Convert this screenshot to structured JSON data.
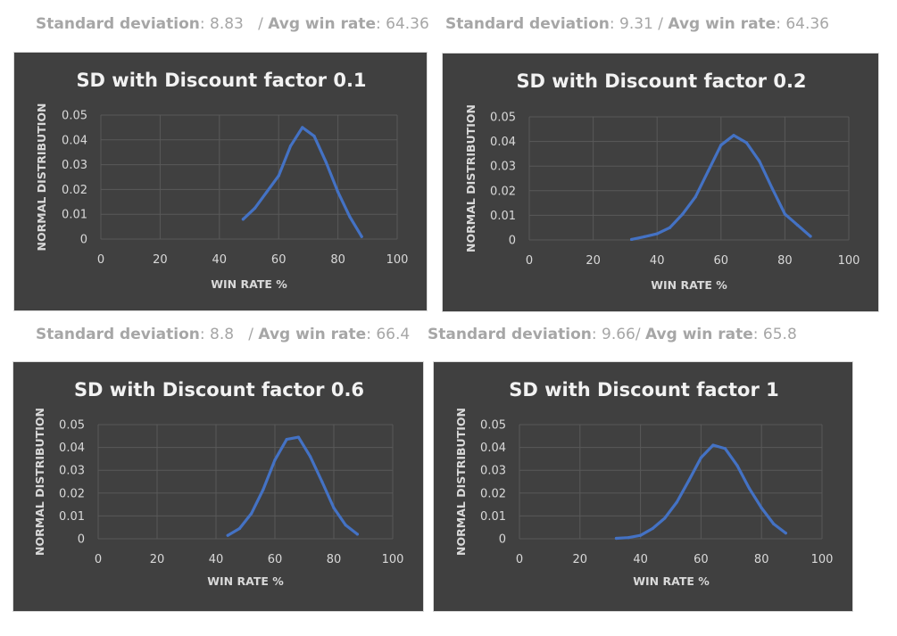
{
  "stats": [
    {
      "sd_label": "Standard deviation",
      "sd_value": ": 8.83",
      "sep": "   / ",
      "avg_label": "Avg win rate",
      "avg_value": ": 64.36"
    },
    {
      "sd_label": "Standard deviation",
      "sd_value": ": 9.31",
      "sep": " / ",
      "avg_label": "Avg win rate",
      "avg_value": ": 64.36"
    },
    {
      "sd_label": "Standard deviation",
      "sd_value": ": 8.8",
      "sep": "   / ",
      "avg_label": "Avg win rate",
      "avg_value": ": 66.4"
    },
    {
      "sd_label": "Standard deviation",
      "sd_value": ": 9.66",
      "sep": "/ ",
      "avg_label": "Avg win rate",
      "avg_value": ": 65.8"
    }
  ],
  "colors": {
    "panel_bg": "#404040",
    "line": "#4472c4",
    "grid": "#595959",
    "text": "#d9d9d9",
    "title": "#f2f2f2",
    "stat_text": "#a6a6a6"
  },
  "chart_data": [
    {
      "type": "line",
      "title": "SD with Discount factor 0.1",
      "xlabel": "WIN RATE %",
      "ylabel": "NORMAL DISTRIBUTION",
      "xlim": [
        0,
        100
      ],
      "ylim": [
        0,
        0.05
      ],
      "x_ticks": [
        "0",
        "20",
        "40",
        "60",
        "80",
        "100"
      ],
      "y_ticks": [
        "0",
        "0.01",
        "0.02",
        "0.03",
        "0.04",
        "0.05"
      ],
      "grid": true,
      "series": [
        {
          "x": [
            48,
            52,
            56,
            60,
            64,
            68,
            72,
            76,
            80,
            84,
            88
          ],
          "values": [
            0.008,
            0.0125,
            0.019,
            0.0255,
            0.0375,
            0.045,
            0.0415,
            0.031,
            0.019,
            0.009,
            0.001
          ]
        }
      ]
    },
    {
      "type": "line",
      "title": "SD with Discount factor 0.2",
      "xlabel": "WIN RATE %",
      "ylabel": "NORMAL DISTRIBUTION",
      "xlim": [
        0,
        100
      ],
      "ylim": [
        0,
        0.05
      ],
      "x_ticks": [
        "0",
        "20",
        "40",
        "60",
        "80",
        "100"
      ],
      "y_ticks": [
        "0",
        "0.01",
        "0.02",
        "0.03",
        "0.04",
        "0.05"
      ],
      "grid": true,
      "series": [
        {
          "x": [
            32,
            36,
            40,
            44,
            48,
            52,
            56,
            60,
            64,
            68,
            72,
            76,
            80,
            84,
            88
          ],
          "values": [
            0.0002,
            0.0013,
            0.0025,
            0.005,
            0.0105,
            0.0175,
            0.028,
            0.0385,
            0.0425,
            0.0395,
            0.032,
            0.021,
            0.0105,
            0.006,
            0.0015
          ]
        }
      ]
    },
    {
      "type": "line",
      "title": "SD with Discount factor 0.6",
      "xlabel": "WIN RATE %",
      "ylabel": "NORMAL DISTRIBUTION",
      "xlim": [
        0,
        100
      ],
      "ylim": [
        0,
        0.05
      ],
      "x_ticks": [
        "0",
        "20",
        "40",
        "60",
        "80",
        "100"
      ],
      "y_ticks": [
        "0",
        "0.01",
        "0.02",
        "0.03",
        "0.04",
        "0.05"
      ],
      "grid": true,
      "series": [
        {
          "x": [
            44,
            48,
            52,
            56,
            60,
            64,
            68,
            72,
            76,
            80,
            84,
            88
          ],
          "values": [
            0.0015,
            0.0045,
            0.011,
            0.0215,
            0.0345,
            0.0435,
            0.0445,
            0.036,
            0.025,
            0.0135,
            0.006,
            0.002
          ]
        }
      ]
    },
    {
      "type": "line",
      "title": "SD with Discount factor 1",
      "xlabel": "WIN RATE %",
      "ylabel": "NORMAL DISTRIBUTION",
      "xlim": [
        0,
        100
      ],
      "ylim": [
        0,
        0.05
      ],
      "x_ticks": [
        "0",
        "20",
        "40",
        "60",
        "80",
        "100"
      ],
      "y_ticks": [
        "0",
        "0.01",
        "0.02",
        "0.03",
        "0.04",
        "0.05"
      ],
      "grid": true,
      "series": [
        {
          "x": [
            32,
            36,
            40,
            44,
            48,
            52,
            56,
            60,
            64,
            68,
            72,
            76,
            80,
            84,
            88
          ],
          "values": [
            0.0002,
            0.0005,
            0.0015,
            0.0045,
            0.009,
            0.016,
            0.0255,
            0.0355,
            0.041,
            0.0395,
            0.032,
            0.022,
            0.0135,
            0.0065,
            0.0025
          ]
        }
      ]
    }
  ]
}
